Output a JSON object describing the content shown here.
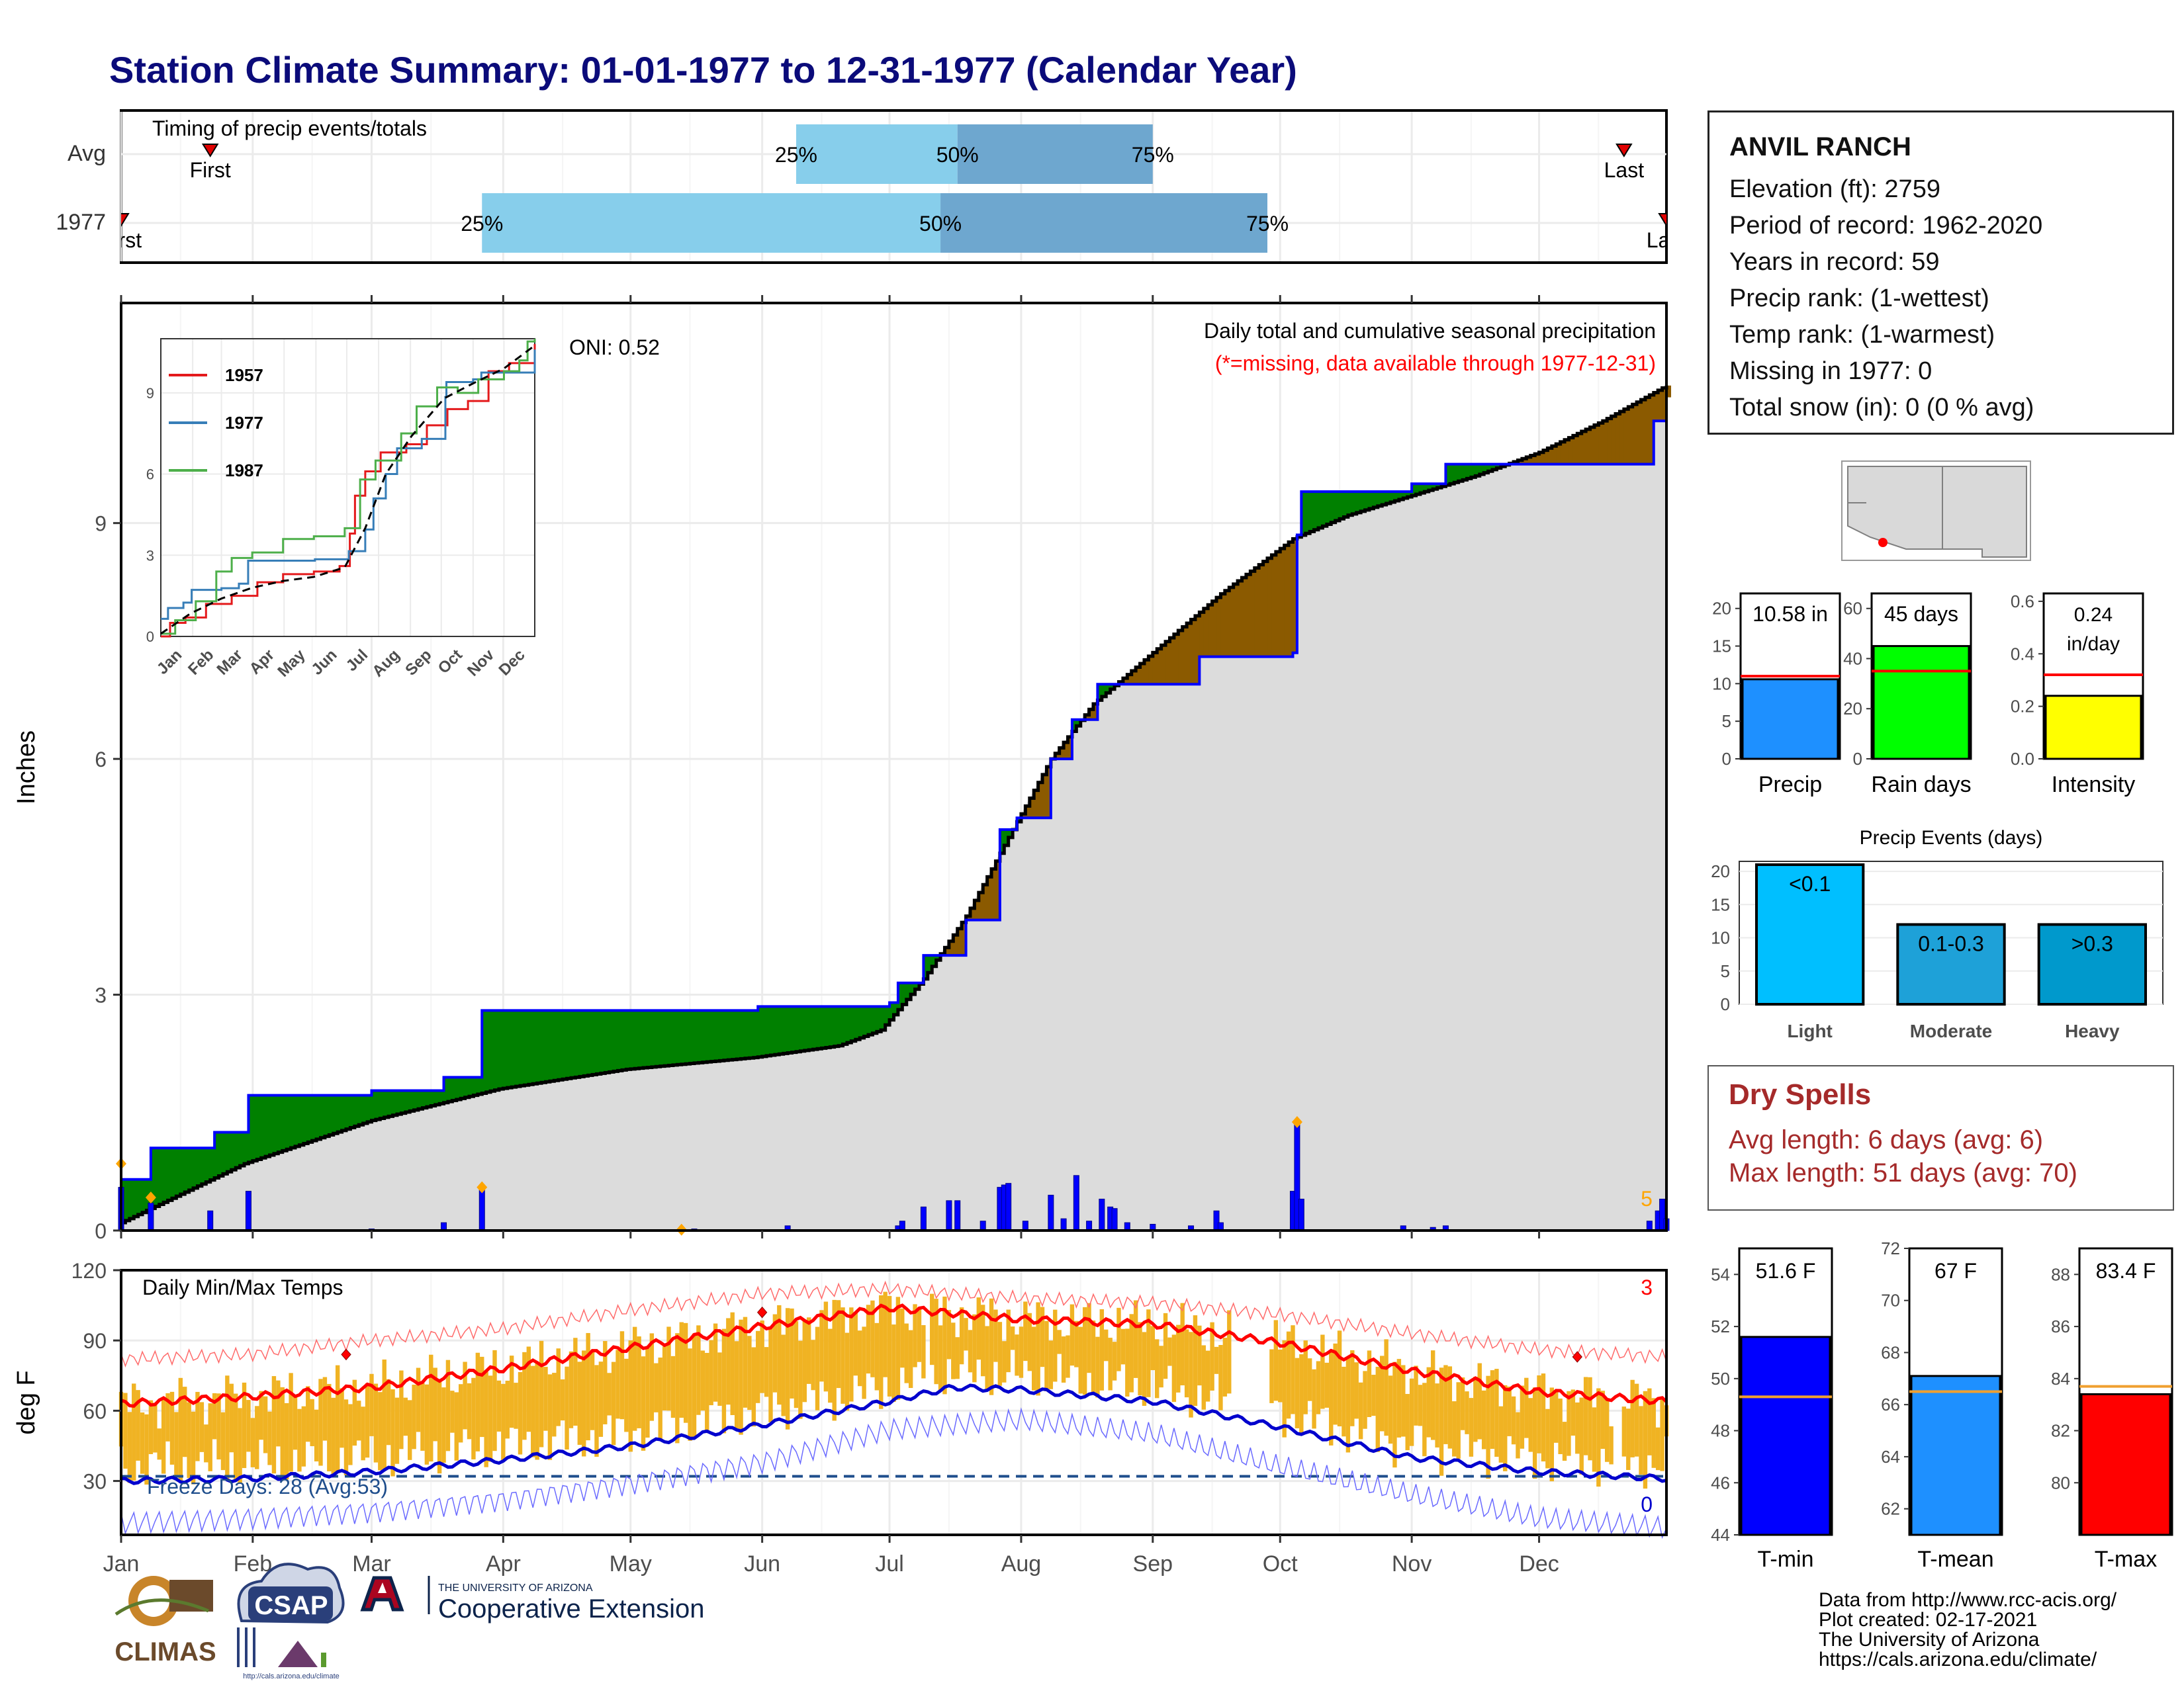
{
  "title": "Station Climate Summary: 01-01-1977 to 12-31-1977 (Calendar Year)",
  "colors": {
    "title": "#0b0b7a",
    "q1": "#87ceeb",
    "q2": "#6ea7cf",
    "above": "#008000",
    "below": "#8b5a00",
    "obs_line": "#0000ff",
    "avg_line": "#000000",
    "fill": "#dcdcdc",
    "tmax": "#ff0000",
    "tmin": "#0000cd",
    "range": "#f0b323",
    "dry_text": "#a52a2a"
  },
  "timing": {
    "label": "Timing of precip events/totals",
    "row_labels": [
      "Avg",
      "1977"
    ],
    "avg": {
      "first_label": "First",
      "last_label": "Last",
      "q25": "25%",
      "q50": "50%",
      "q75": "75%"
    },
    "obs": {
      "first_label": "First",
      "last_label": "Last",
      "q25": "25%",
      "q50": "50%",
      "q75": "75%"
    }
  },
  "precip_panel": {
    "ylabel": "Inches",
    "note_title": "Daily total and cumulative seasonal precipitation",
    "note_missing": "(*=missing, data available through 1977-12-31)",
    "oni": "ONI: 0.52",
    "count_label": "5"
  },
  "temp_panel": {
    "ylabel": "deg F",
    "label": "Daily Min/Max Temps",
    "freeze_label": "Freeze Days: 28 (Avg:53)",
    "count_above": "3",
    "count_below": "0"
  },
  "months": [
    "Jan",
    "Feb",
    "Mar",
    "Apr",
    "May",
    "Jun",
    "Jul",
    "Aug",
    "Sep",
    "Oct",
    "Nov",
    "Dec"
  ],
  "inset": {
    "months": [
      "Jan",
      "Feb",
      "Mar",
      "Apr",
      "May",
      "Jun",
      "Jul",
      "Aug",
      "Sep",
      "Oct",
      "Nov",
      "Dec"
    ],
    "yticks": [
      "0",
      "3",
      "6",
      "9"
    ],
    "legend": [
      "1957",
      "1977",
      "1987"
    ]
  },
  "station": {
    "name": "ANVIL RANCH",
    "lines": [
      "Elevation (ft): 2759",
      "Period of record: 1962-2020",
      "Years in record: 59",
      "Precip rank:  (1-wettest)",
      "Temp rank:  (1-warmest)",
      "Missing in 1977: 0",
      "Total snow (in): 0 (0 % avg)"
    ]
  },
  "mini_bars": [
    {
      "label": "Precip",
      "value_text": "10.58 in",
      "ticks": [
        "0",
        "5",
        "10",
        "15",
        "20"
      ]
    },
    {
      "label": "Rain days",
      "value_text": "45 days",
      "ticks": [
        "0",
        "20",
        "40",
        "60"
      ]
    },
    {
      "label": "Intensity",
      "value_text": "0.24",
      "value_text2": "in/day",
      "ticks": [
        "0.0",
        "0.2",
        "0.4",
        "0.6"
      ]
    }
  ],
  "events": {
    "title": "Precip Events (days)",
    "categories": [
      "Light",
      "Moderate",
      "Heavy"
    ],
    "bar_labels": [
      "<0.1",
      "0.1-0.3",
      ">0.3"
    ],
    "ticks": [
      "0",
      "5",
      "10",
      "15",
      "20"
    ]
  },
  "dry_spells": {
    "title": "Dry Spells",
    "avg": "Avg length: 6 days (avg: 6)",
    "max": "Max length: 51 days (avg: 70)"
  },
  "temp_bars": [
    {
      "label": "T-min",
      "value_text": "51.6 F",
      "ticks": [
        "44",
        "46",
        "48",
        "50",
        "52",
        "54"
      ]
    },
    {
      "label": "T-mean",
      "value_text": "67 F",
      "ticks": [
        "62",
        "64",
        "66",
        "68",
        "70",
        "72"
      ]
    },
    {
      "label": "T-max",
      "value_text": "83.4 F",
      "ticks": [
        "80",
        "82",
        "84",
        "86",
        "88"
      ]
    }
  ],
  "footer": {
    "lines": [
      "Data from http://www.rcc-acis.org/",
      "Plot created: 02-17-2021",
      "The University of Arizona",
      "https://cals.arizona.edu/climate/"
    ],
    "logos": {
      "climas": "CLIMAS",
      "csap": "CSAP",
      "csap_url": "http://cals.arizona.edu/climate",
      "ua_small": "THE UNIVERSITY OF ARIZONA",
      "ua_big": "Cooperative Extension"
    }
  },
  "chart_data": [
    {
      "type": "area",
      "name": "Daily total and cumulative seasonal precipitation",
      "ylabel": "Inches",
      "ylim": [
        0,
        11.8
      ],
      "x_unit": "day of year",
      "xlim": [
        1,
        365
      ],
      "yticks": [
        0,
        3,
        6,
        9
      ],
      "observed_cumulative": [
        [
          1,
          0.65
        ],
        [
          8,
          1.05
        ],
        [
          23,
          1.25
        ],
        [
          31,
          1.72
        ],
        [
          60,
          1.78
        ],
        [
          77,
          1.95
        ],
        [
          86,
          2.8
        ],
        [
          106,
          2.8
        ],
        [
          151,
          2.85
        ],
        [
          182,
          2.9
        ],
        [
          184,
          3.15
        ],
        [
          190,
          3.5
        ],
        [
          200,
          3.95
        ],
        [
          208,
          5.1
        ],
        [
          212,
          5.25
        ],
        [
          220,
          6.0
        ],
        [
          225,
          6.5
        ],
        [
          231,
          6.95
        ],
        [
          255,
          7.3
        ],
        [
          277,
          7.35
        ],
        [
          278,
          8.85
        ],
        [
          279,
          9.4
        ],
        [
          305,
          9.5
        ],
        [
          313,
          9.75
        ],
        [
          325,
          9.75
        ],
        [
          360,
          9.75
        ],
        [
          362,
          10.3
        ],
        [
          365,
          10.6
        ]
      ],
      "average_cumulative": [
        [
          1,
          0.1
        ],
        [
          30,
          0.85
        ],
        [
          60,
          1.4
        ],
        [
          90,
          1.8
        ],
        [
          120,
          2.05
        ],
        [
          150,
          2.2
        ],
        [
          170,
          2.35
        ],
        [
          180,
          2.55
        ],
        [
          190,
          3.2
        ],
        [
          200,
          4.0
        ],
        [
          210,
          5.0
        ],
        [
          220,
          6.0
        ],
        [
          230,
          6.7
        ],
        [
          245,
          7.4
        ],
        [
          260,
          8.1
        ],
        [
          277,
          8.8
        ],
        [
          290,
          9.1
        ],
        [
          305,
          9.35
        ],
        [
          320,
          9.6
        ],
        [
          335,
          9.9
        ],
        [
          350,
          10.3
        ],
        [
          365,
          10.75
        ]
      ],
      "daily_totals": [
        [
          1,
          0.55
        ],
        [
          8,
          0.35
        ],
        [
          22,
          0.25
        ],
        [
          31,
          0.5
        ],
        [
          60,
          0.02
        ],
        [
          77,
          0.1
        ],
        [
          86,
          0.52
        ],
        [
          136,
          0.02
        ],
        [
          158,
          0.06
        ],
        [
          184,
          0.06
        ],
        [
          185,
          0.12
        ],
        [
          190,
          0.3
        ],
        [
          196,
          0.38
        ],
        [
          198,
          0.38
        ],
        [
          204,
          0.12
        ],
        [
          208,
          0.55
        ],
        [
          209,
          0.58
        ],
        [
          210,
          0.6
        ],
        [
          214,
          0.12
        ],
        [
          220,
          0.45
        ],
        [
          223,
          0.15
        ],
        [
          226,
          0.7
        ],
        [
          229,
          0.12
        ],
        [
          232,
          0.4
        ],
        [
          234,
          0.3
        ],
        [
          235,
          0.28
        ],
        [
          238,
          0.1
        ],
        [
          244,
          0.08
        ],
        [
          253,
          0.06
        ],
        [
          259,
          0.25
        ],
        [
          260,
          0.1
        ],
        [
          277,
          0.5
        ],
        [
          278,
          1.35
        ],
        [
          279,
          0.4
        ],
        [
          303,
          0.06
        ],
        [
          310,
          0.04
        ],
        [
          313,
          0.06
        ],
        [
          361,
          0.12
        ],
        [
          363,
          0.25
        ],
        [
          364,
          0.4
        ],
        [
          365,
          0.15
        ]
      ]
    },
    {
      "type": "line",
      "name": "Daily Min/Max Temps",
      "ylabel": "deg F",
      "ylim": [
        7,
        120
      ],
      "yticks": [
        30,
        60,
        90,
        120
      ],
      "freeze_threshold": 32,
      "avg_tmax": [
        [
          1,
          63
        ],
        [
          31,
          66
        ],
        [
          60,
          70
        ],
        [
          91,
          78
        ],
        [
          121,
          87
        ],
        [
          152,
          96
        ],
        [
          182,
          104
        ],
        [
          213,
          99
        ],
        [
          244,
          97
        ],
        [
          274,
          89
        ],
        [
          305,
          77
        ],
        [
          335,
          68
        ],
        [
          365,
          64
        ]
      ],
      "avg_tmin": [
        [
          1,
          30
        ],
        [
          31,
          31
        ],
        [
          60,
          34
        ],
        [
          91,
          39
        ],
        [
          121,
          45
        ],
        [
          152,
          54
        ],
        [
          182,
          64
        ],
        [
          197,
          70
        ],
        [
          213,
          69
        ],
        [
          244,
          64
        ],
        [
          274,
          53
        ],
        [
          305,
          40
        ],
        [
          335,
          34
        ],
        [
          365,
          31
        ]
      ],
      "record_high": [
        [
          1,
          82
        ],
        [
          31,
          84
        ],
        [
          60,
          90
        ],
        [
          91,
          95
        ],
        [
          121,
          103
        ],
        [
          152,
          110
        ],
        [
          182,
          112
        ],
        [
          213,
          108
        ],
        [
          244,
          106
        ],
        [
          274,
          101
        ],
        [
          305,
          93
        ],
        [
          335,
          86
        ],
        [
          365,
          83
        ]
      ],
      "record_low": [
        [
          1,
          12
        ],
        [
          31,
          14
        ],
        [
          60,
          17
        ],
        [
          91,
          22
        ],
        [
          121,
          29
        ],
        [
          152,
          38
        ],
        [
          182,
          52
        ],
        [
          213,
          56
        ],
        [
          244,
          50
        ],
        [
          274,
          36
        ],
        [
          305,
          24
        ],
        [
          335,
          14
        ],
        [
          365,
          10
        ]
      ]
    },
    {
      "type": "line",
      "name": "inset",
      "ylim": [
        0,
        11
      ],
      "x_unit": "day of year",
      "series": [
        {
          "name": "1957",
          "color": "#e41a1c",
          "points": [
            [
              1,
              0
            ],
            [
              10,
              0.5
            ],
            [
              25,
              0.7
            ],
            [
              45,
              1.2
            ],
            [
              70,
              1.5
            ],
            [
              95,
              2.0
            ],
            [
              120,
              2.3
            ],
            [
              150,
              2.4
            ],
            [
              175,
              2.6
            ],
            [
              185,
              3.8
            ],
            [
              190,
              5.2
            ],
            [
              200,
              6.1
            ],
            [
              215,
              6.8
            ],
            [
              240,
              7.1
            ],
            [
              260,
              7.8
            ],
            [
              280,
              8.4
            ],
            [
              300,
              8.7
            ],
            [
              320,
              9.8
            ],
            [
              340,
              10.1
            ],
            [
              365,
              10.8
            ]
          ]
        },
        {
          "name": "1977",
          "color": "#377eb8",
          "points": [
            [
              1,
              0.65
            ],
            [
              8,
              1.05
            ],
            [
              23,
              1.25
            ],
            [
              31,
              1.72
            ],
            [
              60,
              1.78
            ],
            [
              77,
              1.95
            ],
            [
              86,
              2.8
            ],
            [
              151,
              2.85
            ],
            [
              184,
              3.15
            ],
            [
              200,
              3.95
            ],
            [
              208,
              5.1
            ],
            [
              220,
              6.0
            ],
            [
              231,
              6.95
            ],
            [
              255,
              7.3
            ],
            [
              278,
              8.85
            ],
            [
              279,
              9.4
            ],
            [
              305,
              9.5
            ],
            [
              313,
              9.75
            ],
            [
              360,
              9.75
            ],
            [
              365,
              10.6
            ]
          ]
        },
        {
          "name": "1987",
          "color": "#4daf4a",
          "points": [
            [
              1,
              0.1
            ],
            [
              15,
              0.6
            ],
            [
              35,
              1.3
            ],
            [
              55,
              2.4
            ],
            [
              70,
              2.9
            ],
            [
              90,
              3.1
            ],
            [
              120,
              3.6
            ],
            [
              150,
              3.7
            ],
            [
              180,
              4.0
            ],
            [
              195,
              5.8
            ],
            [
              210,
              6.5
            ],
            [
              235,
              7.5
            ],
            [
              250,
              8.5
            ],
            [
              270,
              9.2
            ],
            [
              290,
              9.0
            ],
            [
              310,
              9.5
            ],
            [
              335,
              9.8
            ],
            [
              350,
              10.2
            ],
            [
              358,
              10.9
            ],
            [
              365,
              11.0
            ]
          ]
        }
      ],
      "average": [
        [
          1,
          0.1
        ],
        [
          30,
          0.85
        ],
        [
          60,
          1.4
        ],
        [
          90,
          1.8
        ],
        [
          120,
          2.05
        ],
        [
          150,
          2.2
        ],
        [
          180,
          2.55
        ],
        [
          200,
          4.0
        ],
        [
          220,
          6.0
        ],
        [
          245,
          7.4
        ],
        [
          277,
          8.8
        ],
        [
          305,
          9.35
        ],
        [
          335,
          9.9
        ],
        [
          365,
          10.75
        ]
      ]
    },
    {
      "type": "bar",
      "name": "mini_precip",
      "categories": [
        "Precip",
        "Rain days",
        "Intensity"
      ],
      "values": [
        10.58,
        45,
        0.24
      ],
      "averages": [
        11.0,
        35,
        0.32
      ],
      "ylims": [
        [
          0,
          22
        ],
        [
          0,
          66
        ],
        [
          0,
          0.63
        ]
      ]
    },
    {
      "type": "bar",
      "name": "Precip Events (days)",
      "categories": [
        "Light",
        "Moderate",
        "Heavy"
      ],
      "values": [
        21,
        12,
        12
      ],
      "ylim": [
        0,
        21.5
      ],
      "colors": [
        "#00bfff",
        "#1ea1d8",
        "#0099cc"
      ]
    },
    {
      "type": "bar",
      "name": "temp_means",
      "categories": [
        "T-min",
        "T-mean",
        "T-max"
      ],
      "values": [
        51.6,
        67.1,
        83.4
      ],
      "averages": [
        49.3,
        66.5,
        83.7
      ],
      "ylims": [
        [
          44,
          55
        ],
        [
          61,
          72
        ],
        [
          78,
          89
        ]
      ],
      "colors": [
        "#0000ff",
        "#1e90ff",
        "#ff0000"
      ]
    }
  ]
}
